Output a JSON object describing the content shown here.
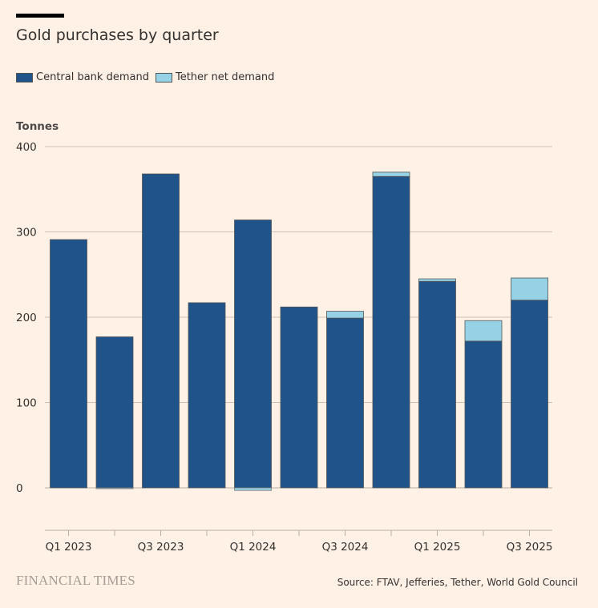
{
  "chart_data": {
    "type": "bar",
    "stacked": true,
    "title": "Gold purchases by quarter",
    "ylabel": "Tonnes",
    "xlabel": "",
    "ylim": [
      -50,
      400
    ],
    "yticks": [
      0,
      100,
      200,
      300,
      400
    ],
    "grid": true,
    "legend_placement": "top-left",
    "categories": [
      "Q1 2023",
      "Q2 2023",
      "Q3 2023",
      "Q4 2023",
      "Q1 2024",
      "Q2 2024",
      "Q3 2024",
      "Q4 2024",
      "Q1 2025",
      "Q2 2025",
      "Q3 2025"
    ],
    "xtick_labels": [
      "Q1 2023",
      "",
      "Q3 2023",
      "",
      "Q1 2024",
      "",
      "Q3 2024",
      "",
      "Q1 2025",
      "",
      "Q3 2025"
    ],
    "series": [
      {
        "name": "Central bank demand",
        "color": "#1f538a",
        "values": [
          291,
          177,
          368,
          217,
          314,
          212,
          199,
          365,
          242,
          172,
          220
        ]
      },
      {
        "name": "Tether net demand",
        "color": "#96d2e6",
        "values": [
          0,
          -1,
          0,
          0,
          -3,
          0,
          8,
          5,
          3,
          24,
          26
        ]
      }
    ]
  },
  "source": "Source: FTAV, Jefferies, Tether, World Gold Council",
  "brand": "FINANCIAL TIMES"
}
